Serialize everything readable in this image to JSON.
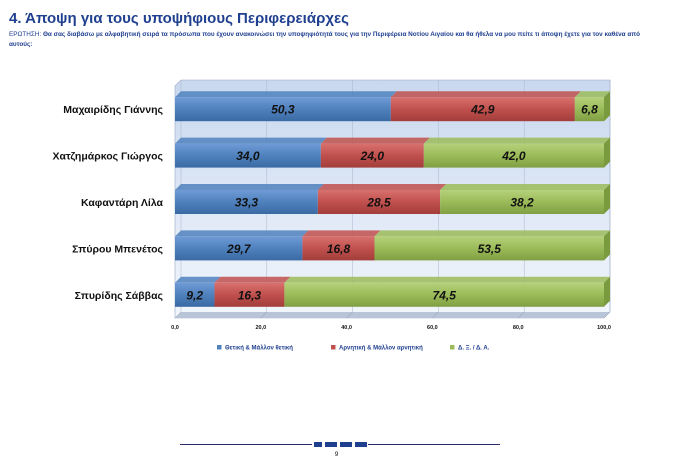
{
  "page": {
    "title": "4. Άποψη για τους υποψήφιους Περιφερειάρχες",
    "question_label": "ΕΡΩΤΗΣΗ:",
    "question_text": "Θα σας διαβάσω με αλφαβητική σειρά τα πρόσωπα που έχουν ανακοινώσει την υποψηφιότητά τους για την Περιφέρεια Νοτίου Αιγαίου και θα ήθελα να μου πείτε τι άποψη έχετε για τον καθένα από αυτούς:",
    "page_number": "9"
  },
  "colors": {
    "positive": "#4f81bd",
    "negative": "#c0504d",
    "neutral": "#9bbb59",
    "plot_bg": "#dfe8f6",
    "title": "#1f3f8f"
  },
  "chart_data": {
    "type": "bar",
    "orientation": "horizontal",
    "stacked": true,
    "categories": [
      "Μαχαιρίδης Γιάννης",
      "Χατζημάρκος Γιώργος",
      "Καφαντάρη Λίλα",
      "Σπύρου Μπενέτος",
      "Σπυρίδης Σάββας"
    ],
    "series": [
      {
        "name": "Θετική & Μάλλον θετική",
        "values": [
          50.3,
          34.0,
          33.3,
          29.7,
          9.2
        ],
        "labels": [
          "50,3",
          "34,0",
          "33,3",
          "29,7",
          "9,2"
        ]
      },
      {
        "name": "Αρνητική & Μάλλον αρνητική",
        "values": [
          42.9,
          24.0,
          28.5,
          16.8,
          16.3
        ],
        "labels": [
          "42,9",
          "24,0",
          "28,5",
          "16,8",
          "16,3"
        ]
      },
      {
        "name": "Δ. Ξ. / Δ. Α.",
        "values": [
          6.8,
          42.0,
          38.2,
          53.5,
          74.5
        ],
        "labels": [
          "6,8",
          "42,0",
          "38,2",
          "53,5",
          "74,5"
        ]
      }
    ],
    "xlim": [
      0,
      100
    ],
    "xticks": [
      "0,0",
      "20,0",
      "40,0",
      "60,0",
      "80,0",
      "100,0"
    ],
    "legend_position": "bottom",
    "grid": true
  }
}
